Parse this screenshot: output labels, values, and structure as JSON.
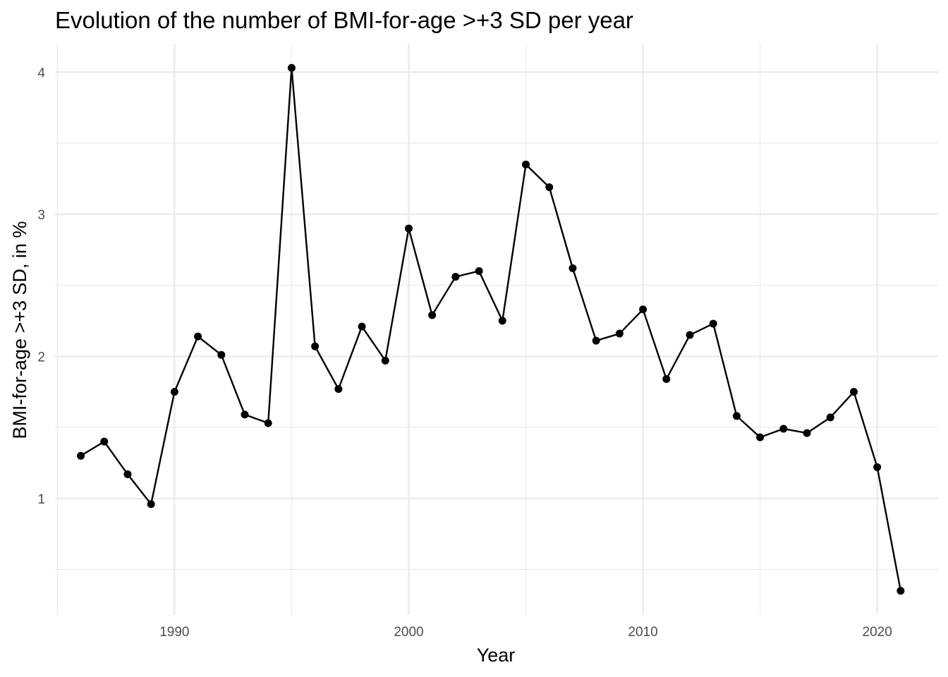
{
  "chart_data": {
    "type": "line",
    "title": "Evolution of the number of BMI-for-age >+3 SD per year",
    "xlabel": "Year",
    "ylabel": "BMI-for-age >+3 SD, in %",
    "xlim": [
      1984.9,
      2022.6
    ],
    "ylim": [
      0.18,
      4.2
    ],
    "x_major_ticks": [
      1990,
      2000,
      2010,
      2020
    ],
    "x_minor_ticks": [
      1985,
      1995,
      2005,
      2015
    ],
    "y_major_ticks": [
      1,
      2,
      3,
      4
    ],
    "y_minor_ticks": [
      0.5,
      1.5,
      2.5,
      3.5
    ],
    "grid": true,
    "line_color": "#000000",
    "grid_color": "#ebebeb",
    "series": [
      {
        "x": [
          1986,
          1987,
          1988,
          1989,
          1990,
          1991,
          1992,
          1993,
          1994,
          1995,
          1996,
          1997,
          1998,
          1999,
          2000,
          2001,
          2002,
          2003,
          2004,
          2005,
          2006,
          2007,
          2008,
          2009,
          2010,
          2011,
          2012,
          2013,
          2014,
          2015,
          2016,
          2017,
          2018,
          2019,
          2020,
          2021
        ],
        "values": [
          1.3,
          1.4,
          1.17,
          0.96,
          1.75,
          2.14,
          2.01,
          1.59,
          1.53,
          4.03,
          2.07,
          1.77,
          2.21,
          1.97,
          2.9,
          2.29,
          2.56,
          2.6,
          2.25,
          3.35,
          3.19,
          2.62,
          2.11,
          2.16,
          2.33,
          1.84,
          2.15,
          2.23,
          1.58,
          1.43,
          1.49,
          1.46,
          1.57,
          1.75,
          1.22,
          0.35
        ]
      }
    ]
  }
}
